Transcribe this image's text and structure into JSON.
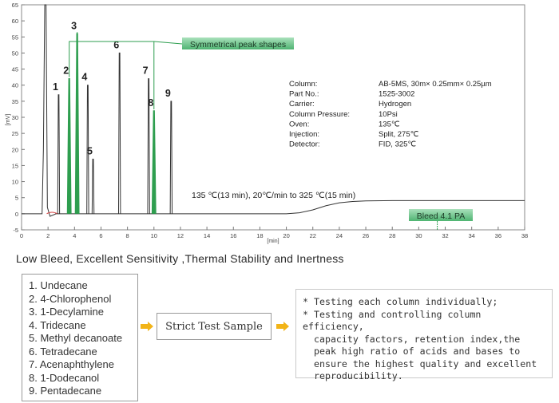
{
  "chart_data": {
    "type": "line",
    "xlabel": "[min]",
    "ylabel": "[mV]",
    "xlim": [
      0,
      38
    ],
    "ylim": [
      -5,
      65
    ],
    "x_ticks": [
      0,
      2,
      4,
      6,
      8,
      10,
      12,
      14,
      16,
      18,
      20,
      22,
      24,
      26,
      28,
      30,
      32,
      34,
      36,
      38
    ],
    "y_ticks": [
      -5,
      0,
      5,
      10,
      15,
      20,
      25,
      30,
      35,
      40,
      45,
      50,
      55,
      60,
      65
    ],
    "solvent_peak": {
      "x": 1.8,
      "y": 65
    },
    "peaks": [
      {
        "label": "1",
        "x": 2.8,
        "y": 37
      },
      {
        "label": "2",
        "x": 3.6,
        "y": 42
      },
      {
        "label": "3",
        "x": 4.2,
        "y": 56
      },
      {
        "label": "4",
        "x": 5.0,
        "y": 40
      },
      {
        "label": "5",
        "x": 5.4,
        "y": 17
      },
      {
        "label": "6",
        "x": 7.4,
        "y": 50
      },
      {
        "label": "7",
        "x": 9.6,
        "y": 42
      },
      {
        "label": "8",
        "x": 10.0,
        "y": 32
      },
      {
        "label": "9",
        "x": 11.3,
        "y": 35
      }
    ],
    "highlighted_peaks": [
      "2",
      "3",
      "8"
    ],
    "baseline": [
      [
        0,
        0
      ],
      [
        20,
        0
      ],
      [
        21,
        0.3
      ],
      [
        22,
        1.2
      ],
      [
        23,
        2.5
      ],
      [
        24,
        3.4
      ],
      [
        25,
        3.8
      ],
      [
        26,
        4.0
      ],
      [
        28,
        4.1
      ],
      [
        32,
        4.1
      ],
      [
        38,
        4.1
      ]
    ],
    "grid": false,
    "annotations": {
      "peak_shape": "Symmetrical peak shapes",
      "program": "135 ℃(13 min), 20℃/min to 325 ℃(15 min)",
      "bleed": "Bleed 4.1 PA"
    },
    "conditions": [
      {
        "key": "Column:",
        "value": "AB-5MS, 30m× 0.25mm× 0.25µm"
      },
      {
        "key": "Part No.:",
        "value": "1525-3002"
      },
      {
        "key": "Carrier:",
        "value": "Hydrogen"
      },
      {
        "key": "Column Pressure:",
        "value": "10Psi"
      },
      {
        "key": "Oven:",
        "value": "135℃"
      },
      {
        "key": "Injection:",
        "value": "Split, 275℃"
      },
      {
        "key": "Detector:",
        "value": "FID, 325℃"
      }
    ],
    "colors": {
      "trace": "#333333",
      "highlight": "#2e9e4f",
      "callout_fill": "#6cc48a",
      "bleed_line": "#2e9e4f"
    }
  },
  "headline": "Low Bleed, Excellent Sensitivity ,Thermal Stability and Inertness",
  "compounds": [
    "1. Undecane",
    "2. 4-Chlorophenol",
    "3. 1-Decylamine",
    "4. Tridecane",
    "5. Methyl decanoate",
    "6. Tetradecane",
    "7. Acenaphthylene",
    "8. 1-Dodecanol",
    "9. Pentadecane"
  ],
  "sample_label": "Strict Test Sample",
  "notes": [
    {
      "star": "*",
      "lines": [
        "Testing each column individually;"
      ]
    },
    {
      "star": "*",
      "lines": [
        "Testing and controlling column efficiency,",
        "capacity factors, retention index,the",
        "peak high ratio of acids and bases to",
        "ensure the highest quality and excellent",
        "reproducibility."
      ]
    }
  ],
  "arrow_color": "#f2b418"
}
